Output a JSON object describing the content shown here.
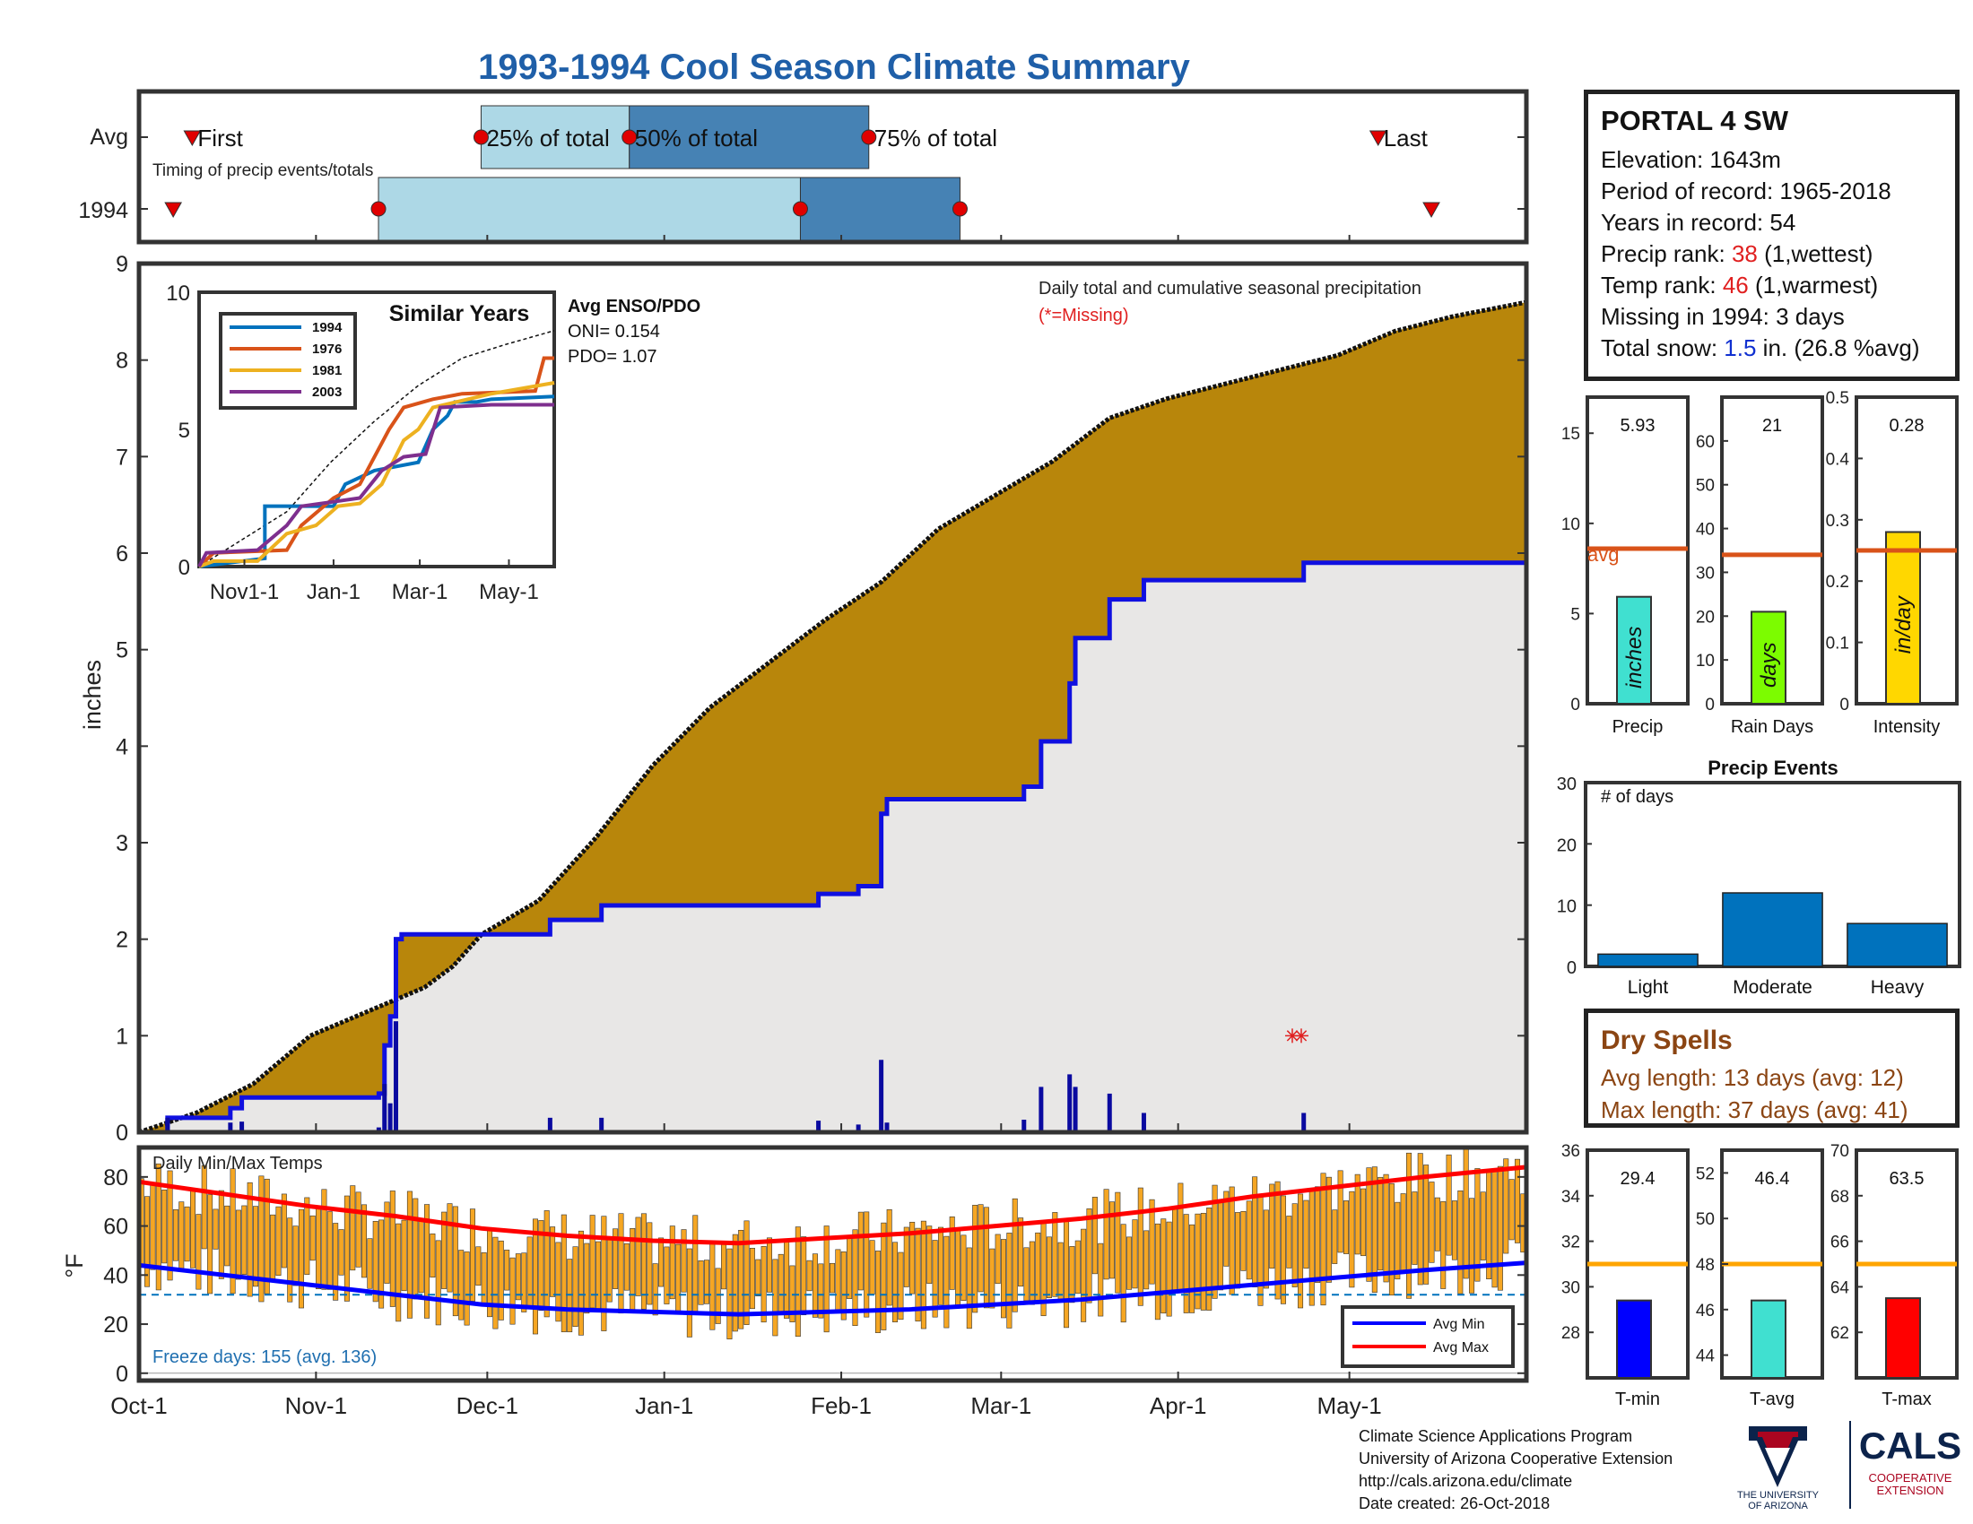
{
  "title": "1993-1994 Cool Season Climate Summary",
  "timing": {
    "row_labels": [
      "Avg",
      "1994"
    ],
    "caption": "Timing of precip events/totals",
    "avg_labels": [
      "First",
      "25% of total",
      "50% of total",
      "75% of total",
      "Last"
    ],
    "avg_markers_day": {
      "first": 14,
      "p25": 90,
      "p50": 129,
      "p75": 192,
      "last": 326
    },
    "y1994_markers_day": {
      "first": 9,
      "p25": 63,
      "p50": 174,
      "p75": 216,
      "last": 340
    },
    "colors": {
      "light": "#add8e6",
      "dark": "#4682b4",
      "dot": "#e00000"
    }
  },
  "station": {
    "name": "PORTAL 4 SW",
    "elevation_label": "Elevation: 1643m",
    "period_label": "Period of record: 1965-2018",
    "years_label": "Years in record: 54",
    "precip_rank_prefix": "Precip rank: ",
    "precip_rank": "38",
    "precip_rank_suffix": " (1,wettest)",
    "temp_rank_prefix": "Temp rank: ",
    "temp_rank": "46",
    "temp_rank_suffix": " (1,warmest)",
    "missing_label": "Missing in 1994: 3 days",
    "snow_prefix": "Total snow: ",
    "snow_value": "1.5",
    "snow_suffix": " in. (26.8 %avg)"
  },
  "chart_data": [
    {
      "id": "cumulative_precip",
      "type": "area",
      "ylabel": "inches",
      "ylim": [
        0,
        9
      ],
      "yticks": [
        0,
        1,
        2,
        3,
        4,
        5,
        6,
        7,
        8,
        9
      ],
      "x_domain_days": [
        0,
        243
      ],
      "xtick_labels": [
        "Oct-1",
        "Nov-1",
        "Dec-1",
        "Jan-1",
        "Feb-1",
        "Mar-1",
        "Apr-1",
        "May-1"
      ],
      "xtick_days": [
        0,
        31,
        61,
        92,
        123,
        151,
        182,
        212
      ],
      "annotation": "Daily total and cumulative seasonal precipitation",
      "missing_note": "(*=Missing)",
      "avg_cumulative_points": [
        [
          0,
          0
        ],
        [
          10,
          0.2
        ],
        [
          20,
          0.5
        ],
        [
          30,
          1.0
        ],
        [
          40,
          1.25
        ],
        [
          50,
          1.5
        ],
        [
          55,
          1.72
        ],
        [
          60,
          2.05
        ],
        [
          70,
          2.4
        ],
        [
          80,
          3.05
        ],
        [
          90,
          3.8
        ],
        [
          100,
          4.4
        ],
        [
          110,
          4.85
        ],
        [
          120,
          5.3
        ],
        [
          130,
          5.7
        ],
        [
          140,
          6.25
        ],
        [
          150,
          6.6
        ],
        [
          160,
          6.95
        ],
        [
          170,
          7.4
        ],
        [
          180,
          7.6
        ],
        [
          190,
          7.75
        ],
        [
          200,
          7.9
        ],
        [
          210,
          8.05
        ],
        [
          220,
          8.3
        ],
        [
          230,
          8.45
        ],
        [
          243,
          8.6
        ]
      ],
      "season_cumulative_points": [
        [
          0,
          0
        ],
        [
          5,
          0
        ],
        [
          5,
          0.15
        ],
        [
          16,
          0.15
        ],
        [
          16,
          0.25
        ],
        [
          18,
          0.25
        ],
        [
          18,
          0.36
        ],
        [
          42,
          0.36
        ],
        [
          42,
          0.4
        ],
        [
          43,
          0.4
        ],
        [
          43,
          0.9
        ],
        [
          44,
          0.9
        ],
        [
          44,
          1.2
        ],
        [
          45,
          1.2
        ],
        [
          45,
          2.0
        ],
        [
          46,
          2.0
        ],
        [
          46,
          2.05
        ],
        [
          72,
          2.05
        ],
        [
          72,
          2.2
        ],
        [
          81,
          2.2
        ],
        [
          81,
          2.35
        ],
        [
          119,
          2.35
        ],
        [
          119,
          2.47
        ],
        [
          126,
          2.47
        ],
        [
          126,
          2.55
        ],
        [
          130,
          2.55
        ],
        [
          130,
          3.3
        ],
        [
          131,
          3.3
        ],
        [
          131,
          3.45
        ],
        [
          155,
          3.45
        ],
        [
          155,
          3.58
        ],
        [
          158,
          3.58
        ],
        [
          158,
          4.05
        ],
        [
          163,
          4.05
        ],
        [
          163,
          4.65
        ],
        [
          164,
          4.65
        ],
        [
          164,
          5.12
        ],
        [
          170,
          5.12
        ],
        [
          170,
          5.52
        ],
        [
          176,
          5.52
        ],
        [
          176,
          5.72
        ],
        [
          204,
          5.72
        ],
        [
          204,
          5.9
        ],
        [
          243,
          5.9
        ]
      ],
      "daily_bars": [
        [
          5,
          0.15
        ],
        [
          16,
          0.1
        ],
        [
          18,
          0.11
        ],
        [
          42,
          0.05
        ],
        [
          43,
          0.5
        ],
        [
          44,
          0.3
        ],
        [
          45,
          1.15
        ],
        [
          72,
          0.15
        ],
        [
          81,
          0.15
        ],
        [
          119,
          0.12
        ],
        [
          126,
          0.08
        ],
        [
          130,
          0.75
        ],
        [
          131,
          0.1
        ],
        [
          155,
          0.13
        ],
        [
          158,
          0.47
        ],
        [
          163,
          0.6
        ],
        [
          164,
          0.47
        ],
        [
          170,
          0.4
        ],
        [
          176,
          0.2
        ],
        [
          204,
          0.2
        ],
        [
          237,
          0.02
        ]
      ],
      "missing_markers": [
        [
          202,
          1.0
        ]
      ]
    },
    {
      "id": "similar_years",
      "type": "line",
      "title": "Similar Years",
      "ylim": [
        0,
        10
      ],
      "yticks": [
        0,
        5,
        10
      ],
      "xtick_labels": [
        "Nov1-1",
        "Jan-1",
        "Mar-1",
        "May-1"
      ],
      "xtick_days": [
        31,
        92,
        151,
        212
      ],
      "enso_title": "Avg ENSO/PDO",
      "oni_label": "ONI= 0.154",
      "pdo_label": "PDO= 1.07",
      "series": [
        {
          "name": "1994",
          "color": "#0072bd",
          "points": [
            [
              0,
              0
            ],
            [
              45,
              0.3
            ],
            [
              45,
              2.2
            ],
            [
              92,
              2.2
            ],
            [
              100,
              3
            ],
            [
              120,
              3.5
            ],
            [
              150,
              3.8
            ],
            [
              160,
              5
            ],
            [
              170,
              5.5
            ],
            [
              175,
              6
            ],
            [
              190,
              6
            ],
            [
              200,
              6.1
            ],
            [
              243,
              6.2
            ]
          ]
        },
        {
          "name": "1976",
          "color": "#d95319",
          "points": [
            [
              0,
              0
            ],
            [
              10,
              0.5
            ],
            [
              60,
              0.6
            ],
            [
              70,
              1.5
            ],
            [
              92,
              2.5
            ],
            [
              110,
              3
            ],
            [
              130,
              5
            ],
            [
              140,
              5.8
            ],
            [
              160,
              6.1
            ],
            [
              180,
              6.3
            ],
            [
              230,
              6.4
            ],
            [
              236,
              7.6
            ],
            [
              243,
              7.6
            ]
          ]
        },
        {
          "name": "1981",
          "color": "#edb120",
          "points": [
            [
              0,
              0
            ],
            [
              10,
              0.2
            ],
            [
              40,
              0.2
            ],
            [
              60,
              1.2
            ],
            [
              80,
              1.5
            ],
            [
              95,
              2.2
            ],
            [
              110,
              2.3
            ],
            [
              125,
              3
            ],
            [
              140,
              4.6
            ],
            [
              150,
              5
            ],
            [
              160,
              5.8
            ],
            [
              200,
              6.3
            ],
            [
              243,
              6.7
            ]
          ]
        },
        {
          "name": "2003",
          "color": "#7e2f8e",
          "points": [
            [
              0,
              0
            ],
            [
              5,
              0.5
            ],
            [
              40,
              0.6
            ],
            [
              60,
              1.5
            ],
            [
              70,
              2.2
            ],
            [
              110,
              2.5
            ],
            [
              125,
              3.5
            ],
            [
              140,
              4
            ],
            [
              155,
              4.1
            ],
            [
              165,
              5.8
            ],
            [
              200,
              5.9
            ],
            [
              243,
              5.9
            ]
          ]
        }
      ],
      "avg_points": [
        [
          0,
          0
        ],
        [
          30,
          1
        ],
        [
          60,
          2
        ],
        [
          90,
          3.8
        ],
        [
          120,
          5.3
        ],
        [
          150,
          6.6
        ],
        [
          180,
          7.6
        ],
        [
          210,
          8.1
        ],
        [
          243,
          8.6
        ]
      ]
    },
    {
      "id": "season_precip",
      "type": "bar",
      "categories": [
        "Precip",
        "Rain Days",
        "Intensity"
      ],
      "values": [
        5.93,
        21,
        0.28
      ],
      "value_labels": [
        "5.93",
        "21",
        "0.28"
      ],
      "averages": [
        8.6,
        34,
        0.25
      ],
      "ylims": [
        [
          0,
          17
        ],
        [
          0,
          70
        ],
        [
          0,
          0.5
        ]
      ],
      "yticks": [
        [
          0,
          5,
          10,
          15
        ],
        [
          0,
          10,
          20,
          30,
          40,
          50,
          60
        ],
        [
          0,
          0.1,
          0.2,
          0.3,
          0.4,
          0.5
        ]
      ],
      "ytick_labels": [
        [
          "0",
          "5",
          "10",
          "15"
        ],
        [
          "0",
          "10",
          "20",
          "30",
          "40",
          "50",
          "60"
        ],
        [
          "0",
          "0.1",
          "0.2",
          "0.3",
          "0.4",
          "0.5"
        ]
      ],
      "unit_labels": [
        "inches",
        "days",
        "in/day"
      ],
      "colors": [
        "#40e0d0",
        "#7cfc00",
        "#ffd700"
      ],
      "avg_label": "avg",
      "avg_color": "#d95319"
    },
    {
      "id": "precip_events",
      "type": "bar",
      "title": "Precip Events",
      "ylabel": "# of days",
      "categories": [
        "Light",
        "Moderate",
        "Heavy"
      ],
      "values": [
        2,
        12,
        7
      ],
      "ylim": [
        0,
        30
      ],
      "yticks": [
        0,
        10,
        20,
        30
      ],
      "color": "#0072bd"
    },
    {
      "id": "daily_temps",
      "type": "bar",
      "title": "Daily Min/Max Temps",
      "ylabel": "°F",
      "ylim": [
        -3,
        92
      ],
      "yticks": [
        0,
        20,
        40,
        60,
        80
      ],
      "freeze_label": "Freeze days: 155 (avg. 136)",
      "freeze_line": 32,
      "legend": [
        "Avg Min",
        "Avg Max"
      ],
      "avg_min_points": [
        [
          0,
          44
        ],
        [
          15,
          40
        ],
        [
          30,
          36
        ],
        [
          45,
          32
        ],
        [
          60,
          28
        ],
        [
          75,
          26
        ],
        [
          90,
          25
        ],
        [
          105,
          24
        ],
        [
          120,
          25
        ],
        [
          135,
          26
        ],
        [
          150,
          28
        ],
        [
          165,
          30
        ],
        [
          180,
          33
        ],
        [
          195,
          36
        ],
        [
          210,
          39
        ],
        [
          225,
          42
        ],
        [
          243,
          45
        ]
      ],
      "avg_max_points": [
        [
          0,
          78
        ],
        [
          15,
          73
        ],
        [
          30,
          68
        ],
        [
          45,
          64
        ],
        [
          60,
          59
        ],
        [
          75,
          56
        ],
        [
          90,
          54
        ],
        [
          105,
          53
        ],
        [
          120,
          55
        ],
        [
          135,
          57
        ],
        [
          150,
          60
        ],
        [
          165,
          63
        ],
        [
          180,
          67
        ],
        [
          195,
          72
        ],
        [
          210,
          76
        ],
        [
          225,
          80
        ],
        [
          243,
          84
        ]
      ],
      "colors": {
        "bar": "#f5a623",
        "min": "#0000ff",
        "max": "#ff0000",
        "freeze": "#0072bd"
      }
    },
    {
      "id": "season_temps",
      "type": "bar",
      "categories": [
        "T-min",
        "T-avg",
        "T-max"
      ],
      "values": [
        29.4,
        46.4,
        63.5
      ],
      "value_labels": [
        "29.4",
        "46.4",
        "63.5"
      ],
      "averages": [
        31,
        48,
        65
      ],
      "ylims": [
        [
          26,
          36
        ],
        [
          43,
          53
        ],
        [
          60,
          70
        ]
      ],
      "yticks": [
        [
          28,
          30,
          32,
          34,
          36
        ],
        [
          44,
          46,
          48,
          50,
          52
        ],
        [
          62,
          64,
          66,
          68,
          70
        ]
      ],
      "colors": [
        "#0000ff",
        "#40e0d0",
        "#ff0000"
      ],
      "avg_color": "#ffa500"
    }
  ],
  "dry_spells": {
    "title": "Dry Spells",
    "avg_line": "Avg length: 13 days (avg: 12)",
    "max_line": "Max length: 37 days (avg: 41)"
  },
  "footer": {
    "line1": "Climate Science Applications Program",
    "line2": "University of Arizona Cooperative Extension",
    "line3": "http://cals.arizona.edu/climate",
    "line4": " Date created: 26-Oct-2018"
  },
  "logos": {
    "ua_line1": "THE UNIVERSITY",
    "ua_line2": "OF ARIZONA",
    "cals_title": "CALS",
    "cals_line1": "COOPERATIVE",
    "cals_line2": "EXTENSION"
  }
}
